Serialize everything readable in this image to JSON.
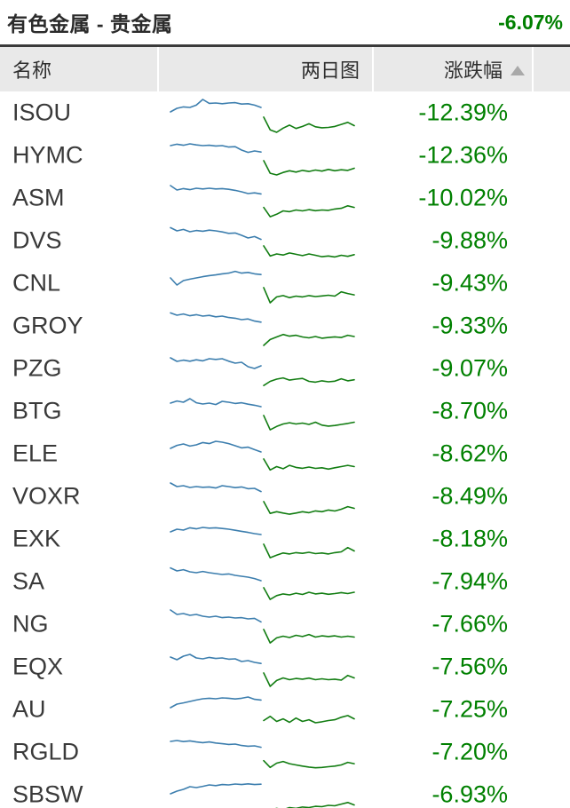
{
  "header": {
    "title": "有色金属 - 贵金属",
    "change": "-6.07%"
  },
  "table": {
    "columns": [
      {
        "label": "名称"
      },
      {
        "label": "两日图"
      },
      {
        "label": "涨跌幅",
        "sort_arrow": "up"
      }
    ]
  },
  "colors": {
    "change_green": "#008000",
    "spark_day1_blue": "#3c7eae",
    "spark_day2_green": "#127d12",
    "header_bg": "#e9e9e9",
    "sort_arrow": "#a9a9a9",
    "title_rule": "#3b3b3b"
  },
  "rows": [
    {
      "ticker": "ISOU",
      "change": "-12.39%",
      "spark": {
        "day1": [
          0.8,
          0.6,
          0.52,
          0.55,
          0.42,
          0.1,
          0.32,
          0.3,
          0.34,
          0.3,
          0.28,
          0.36,
          0.34,
          0.42,
          0.55
        ],
        "day2": [
          0.05,
          0.8,
          0.95,
          0.7,
          0.52,
          0.72,
          0.6,
          0.44,
          0.62,
          0.68,
          0.66,
          0.6,
          0.48,
          0.36,
          0.55
        ]
      }
    },
    {
      "ticker": "HYMC",
      "change": "-12.36%",
      "spark": {
        "day1": [
          0.3,
          0.22,
          0.28,
          0.2,
          0.26,
          0.3,
          0.28,
          0.32,
          0.3,
          0.38,
          0.36,
          0.55,
          0.68,
          0.6,
          0.66
        ],
        "day2": [
          0.1,
          0.85,
          0.95,
          0.8,
          0.7,
          0.78,
          0.68,
          0.74,
          0.66,
          0.72,
          0.62,
          0.7,
          0.64,
          0.68,
          0.55
        ]
      }
    },
    {
      "ticker": "ASM",
      "change": "-10.02%",
      "spark": {
        "day1": [
          0.15,
          0.4,
          0.32,
          0.38,
          0.3,
          0.34,
          0.3,
          0.34,
          0.32,
          0.36,
          0.42,
          0.5,
          0.6,
          0.56,
          0.62
        ],
        "day2": [
          0.35,
          0.9,
          0.75,
          0.55,
          0.6,
          0.5,
          0.55,
          0.48,
          0.54,
          0.5,
          0.52,
          0.44,
          0.4,
          0.25,
          0.35
        ]
      }
    },
    {
      "ticker": "DVS",
      "change": "-9.88%",
      "spark": {
        "day1": [
          0.12,
          0.3,
          0.22,
          0.35,
          0.28,
          0.32,
          0.26,
          0.3,
          0.36,
          0.44,
          0.42,
          0.55,
          0.7,
          0.62,
          0.78
        ],
        "day2": [
          0.1,
          0.7,
          0.58,
          0.64,
          0.52,
          0.6,
          0.68,
          0.58,
          0.66,
          0.74,
          0.7,
          0.76,
          0.66,
          0.72,
          0.62
        ]
      }
    },
    {
      "ticker": "CNL",
      "change": "-9.43%",
      "spark": {
        "day1": [
          0.55,
          0.95,
          0.7,
          0.62,
          0.55,
          0.48,
          0.42,
          0.38,
          0.32,
          0.28,
          0.18,
          0.28,
          0.24,
          0.32,
          0.36
        ],
        "day2": [
          0.05,
          0.95,
          0.6,
          0.52,
          0.64,
          0.55,
          0.6,
          0.52,
          0.58,
          0.54,
          0.5,
          0.55,
          0.3,
          0.4,
          0.48
        ]
      }
    },
    {
      "ticker": "GROY",
      "change": "-9.33%",
      "spark": {
        "day1": [
          0.12,
          0.25,
          0.18,
          0.28,
          0.22,
          0.3,
          0.26,
          0.34,
          0.3,
          0.38,
          0.42,
          0.5,
          0.46,
          0.58,
          0.64
        ],
        "day2": [
          0.95,
          0.6,
          0.45,
          0.3,
          0.4,
          0.35,
          0.45,
          0.5,
          0.42,
          0.52,
          0.48,
          0.44,
          0.48,
          0.35,
          0.42
        ]
      }
    },
    {
      "ticker": "PZG",
      "change": "-9.07%",
      "spark": {
        "day1": [
          0.25,
          0.45,
          0.38,
          0.44,
          0.36,
          0.42,
          0.3,
          0.34,
          0.3,
          0.44,
          0.55,
          0.5,
          0.75,
          0.85,
          0.7
        ],
        "day2": [
          0.8,
          0.55,
          0.42,
          0.35,
          0.48,
          0.42,
          0.38,
          0.55,
          0.6,
          0.52,
          0.58,
          0.54,
          0.4,
          0.52,
          0.46
        ]
      }
    },
    {
      "ticker": "BTG",
      "change": "-8.70%",
      "spark": {
        "day1": [
          0.4,
          0.28,
          0.35,
          0.15,
          0.38,
          0.45,
          0.4,
          0.48,
          0.3,
          0.35,
          0.42,
          0.38,
          0.46,
          0.52,
          0.6
        ],
        "day2": [
          0.05,
          0.9,
          0.7,
          0.55,
          0.48,
          0.55,
          0.5,
          0.58,
          0.45,
          0.62,
          0.68,
          0.64,
          0.58,
          0.52,
          0.45
        ]
      }
    },
    {
      "ticker": "ELE",
      "change": "-8.62%",
      "spark": {
        "day1": [
          0.55,
          0.38,
          0.3,
          0.42,
          0.35,
          0.22,
          0.28,
          0.15,
          0.2,
          0.28,
          0.4,
          0.52,
          0.48,
          0.62,
          0.75
        ],
        "day2": [
          0.1,
          0.75,
          0.55,
          0.68,
          0.48,
          0.6,
          0.65,
          0.58,
          0.66,
          0.62,
          0.7,
          0.62,
          0.55,
          0.48,
          0.55
        ]
      }
    },
    {
      "ticker": "VOXR",
      "change": "-8.49%",
      "spark": {
        "day1": [
          0.1,
          0.3,
          0.25,
          0.35,
          0.3,
          0.34,
          0.32,
          0.38,
          0.25,
          0.3,
          0.36,
          0.32,
          0.42,
          0.4,
          0.58
        ],
        "day2": [
          0.1,
          0.8,
          0.7,
          0.78,
          0.85,
          0.78,
          0.7,
          0.76,
          0.65,
          0.7,
          0.6,
          0.66,
          0.55,
          0.4,
          0.5
        ]
      }
    },
    {
      "ticker": "EXK",
      "change": "-8.18%",
      "spark": {
        "day1": [
          0.45,
          0.3,
          0.35,
          0.22,
          0.28,
          0.2,
          0.24,
          0.22,
          0.26,
          0.3,
          0.36,
          0.42,
          0.48,
          0.55,
          0.6
        ],
        "day2": [
          0.1,
          0.9,
          0.75,
          0.62,
          0.68,
          0.6,
          0.64,
          0.58,
          0.66,
          0.62,
          0.68,
          0.6,
          0.55,
          0.3,
          0.5
        ]
      }
    },
    {
      "ticker": "SA",
      "change": "-7.94%",
      "spark": {
        "day1": [
          0.08,
          0.25,
          0.18,
          0.3,
          0.35,
          0.28,
          0.35,
          0.4,
          0.45,
          0.42,
          0.5,
          0.55,
          0.6,
          0.68,
          0.8
        ],
        "day2": [
          0.15,
          0.85,
          0.62,
          0.52,
          0.58,
          0.48,
          0.55,
          0.42,
          0.52,
          0.48,
          0.54,
          0.5,
          0.44,
          0.5,
          0.42
        ]
      }
    },
    {
      "ticker": "NG",
      "change": "-7.66%",
      "spark": {
        "day1": [
          0.05,
          0.3,
          0.25,
          0.35,
          0.3,
          0.4,
          0.45,
          0.4,
          0.48,
          0.45,
          0.5,
          0.48,
          0.55,
          0.52,
          0.72
        ],
        "day2": [
          0.1,
          0.9,
          0.6,
          0.5,
          0.58,
          0.45,
          0.52,
          0.4,
          0.55,
          0.48,
          0.52,
          0.48,
          0.55,
          0.5,
          0.55
        ]
      }
    },
    {
      "ticker": "EQX",
      "change": "-7.56%",
      "spark": {
        "day1": [
          0.3,
          0.45,
          0.25,
          0.15,
          0.35,
          0.4,
          0.32,
          0.38,
          0.35,
          0.42,
          0.4,
          0.55,
          0.5,
          0.6,
          0.66
        ],
        "day2": [
          0.15,
          0.95,
          0.6,
          0.45,
          0.55,
          0.48,
          0.52,
          0.46,
          0.55,
          0.5,
          0.55,
          0.52,
          0.58,
          0.3,
          0.45
        ]
      }
    },
    {
      "ticker": "AU",
      "change": "-7.25%",
      "spark": {
        "day1": [
          0.75,
          0.55,
          0.48,
          0.4,
          0.32,
          0.25,
          0.22,
          0.25,
          0.2,
          0.22,
          0.26,
          0.22,
          0.15,
          0.28,
          0.32
        ],
        "day2": [
          0.45,
          0.2,
          0.5,
          0.35,
          0.55,
          0.3,
          0.5,
          0.4,
          0.58,
          0.52,
          0.45,
          0.4,
          0.25,
          0.15,
          0.35
        ]
      }
    },
    {
      "ticker": "RGLD",
      "change": "-7.20%",
      "spark": {
        "day1": [
          0.25,
          0.2,
          0.26,
          0.22,
          0.28,
          0.32,
          0.28,
          0.34,
          0.38,
          0.42,
          0.4,
          0.48,
          0.52,
          0.5,
          0.58
        ],
        "day2": [
          0.3,
          0.7,
          0.45,
          0.35,
          0.48,
          0.55,
          0.62,
          0.68,
          0.72,
          0.7,
          0.66,
          0.62,
          0.55,
          0.4,
          0.48
        ]
      }
    },
    {
      "ticker": "SBSW",
      "change": "-6.93%",
      "spark": {
        "day1": [
          0.8,
          0.65,
          0.55,
          0.4,
          0.45,
          0.38,
          0.3,
          0.34,
          0.28,
          0.3,
          0.25,
          0.28,
          0.24,
          0.28,
          0.26
        ],
        "day2": [
          0.95,
          0.7,
          0.6,
          0.68,
          0.55,
          0.6,
          0.52,
          0.55,
          0.48,
          0.5,
          0.42,
          0.45,
          0.35,
          0.25,
          0.4
        ]
      }
    }
  ]
}
